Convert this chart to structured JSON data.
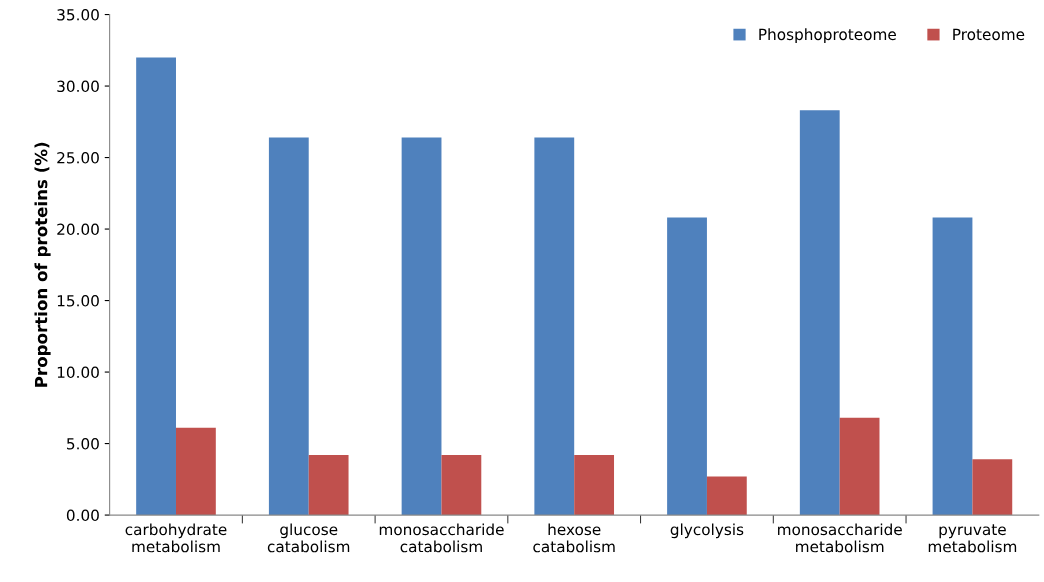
{
  "chart_data": {
    "type": "bar",
    "ylabel": "Proportion of proteins (%)",
    "categories": [
      "carbohydrate\nmetabolism",
      "glucose\ncatabolism",
      "monosaccharide\ncatabolism",
      "hexose\ncatabolism",
      "glycolysis",
      "monosaccharide\nmetabolism",
      "pyruvate\nmetabolism"
    ],
    "series": [
      {
        "name": "Phosphoproteome",
        "color": "#4f81bd",
        "values": [
          32.0,
          26.4,
          26.4,
          26.4,
          20.8,
          28.3,
          20.8
        ]
      },
      {
        "name": "Proteome",
        "color": "#c0504d",
        "values": [
          6.1,
          4.2,
          4.2,
          4.2,
          2.7,
          6.8,
          3.9
        ]
      }
    ],
    "ylim": [
      0,
      35
    ],
    "yticks": [
      {
        "value": 0,
        "label": "0.00"
      },
      {
        "value": 5,
        "label": "5.00"
      },
      {
        "value": 10,
        "label": "10.00"
      },
      {
        "value": 15,
        "label": "15.00"
      },
      {
        "value": 20,
        "label": "20.00"
      },
      {
        "value": 25,
        "label": "25.00"
      },
      {
        "value": 30,
        "label": "30.00"
      },
      {
        "value": 35,
        "label": "35.00"
      }
    ],
    "grid": false,
    "legend": "top right"
  }
}
